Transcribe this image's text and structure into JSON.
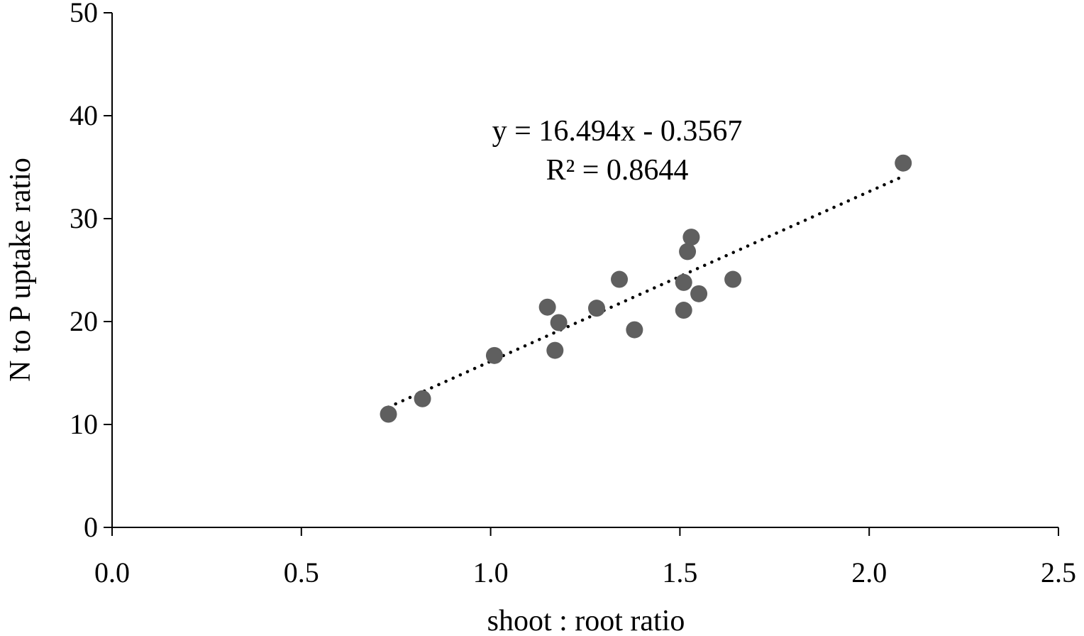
{
  "chart_data": {
    "type": "scatter",
    "xlabel": "shoot : root ratio",
    "ylabel": "N to P uptake ratio",
    "xlim": [
      0,
      2.5
    ],
    "ylim": [
      0,
      50
    ],
    "x_ticks": [
      "0.0",
      "0.5",
      "1.0",
      "1.5",
      "2.0",
      "2.5"
    ],
    "y_ticks": [
      "0",
      "10",
      "20",
      "30",
      "40",
      "50"
    ],
    "grid": false,
    "series": [
      {
        "color": "#5f5f5f",
        "points": [
          {
            "x": 0.73,
            "y": 11.0
          },
          {
            "x": 0.82,
            "y": 12.5
          },
          {
            "x": 1.01,
            "y": 16.7
          },
          {
            "x": 1.15,
            "y": 21.4
          },
          {
            "x": 1.17,
            "y": 17.2
          },
          {
            "x": 1.18,
            "y": 19.9
          },
          {
            "x": 1.28,
            "y": 21.3
          },
          {
            "x": 1.34,
            "y": 24.1
          },
          {
            "x": 1.38,
            "y": 19.2
          },
          {
            "x": 1.51,
            "y": 23.8
          },
          {
            "x": 1.51,
            "y": 21.1
          },
          {
            "x": 1.52,
            "y": 26.8
          },
          {
            "x": 1.53,
            "y": 28.2
          },
          {
            "x": 1.55,
            "y": 22.7
          },
          {
            "x": 1.64,
            "y": 24.1
          },
          {
            "x": 2.09,
            "y": 35.4
          }
        ]
      }
    ],
    "trendline": {
      "type": "linear",
      "slope": 16.494,
      "intercept": -0.3567,
      "x_range": [
        0.73,
        2.09
      ],
      "style": "dotted",
      "color": "#000000"
    },
    "annotations": [
      "y = 16.494x - 0.3567",
      "R² = 0.8644"
    ]
  }
}
